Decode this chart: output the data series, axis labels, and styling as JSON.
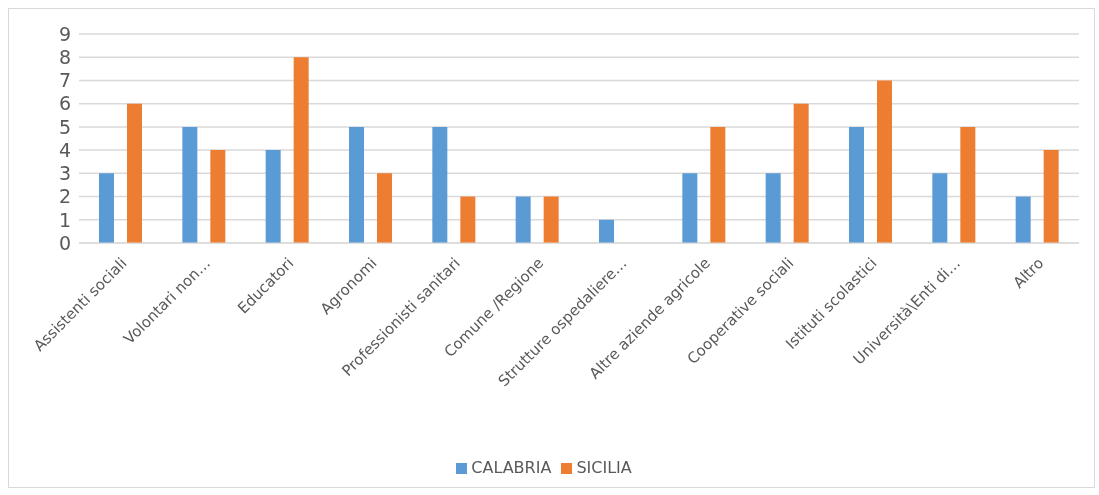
{
  "chart_data": {
    "type": "bar",
    "categories": [
      "Assistenti sociali",
      "Volontari non…",
      "Educatori",
      "Agronomi",
      "Professionisti sanitari",
      "Comune /Regione",
      "Strutture ospedaliere…",
      "Altre aziende agricole",
      "Cooperative sociali",
      "Istituti scolastici",
      "Università\\Enti di…",
      "Altro"
    ],
    "series": [
      {
        "name": "CALABRIA",
        "color": "#5b9bd5",
        "values": [
          3,
          5,
          4,
          5,
          5,
          2,
          1,
          3,
          3,
          5,
          3,
          2
        ]
      },
      {
        "name": "SICILIA",
        "color": "#ed7d31",
        "values": [
          6,
          4,
          8,
          3,
          2,
          2,
          0,
          5,
          6,
          7,
          5,
          4
        ]
      }
    ],
    "ylim": [
      0,
      9
    ],
    "yticks": [
      0,
      1,
      2,
      3,
      4,
      5,
      6,
      7,
      8,
      9
    ],
    "grid": "y",
    "legend": "bottom"
  }
}
